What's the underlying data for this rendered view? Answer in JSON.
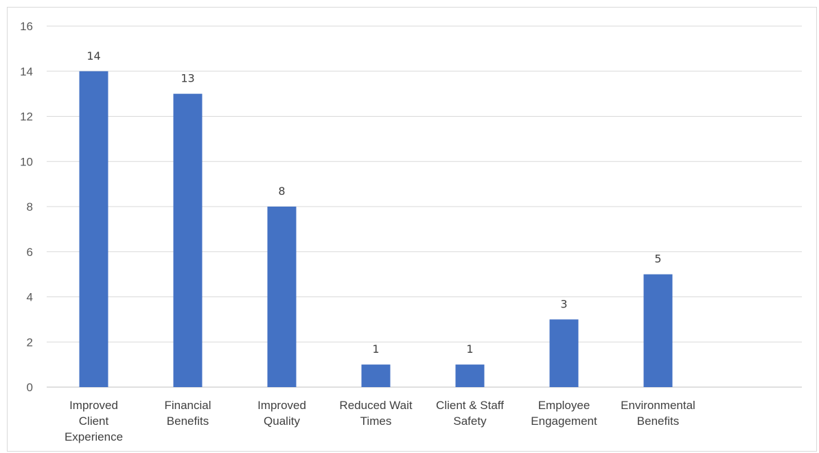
{
  "chart_data": {
    "type": "bar",
    "categories": [
      [
        "Improved",
        "Client",
        "Experience"
      ],
      [
        "Financial",
        "Benefits"
      ],
      [
        "Improved",
        "Quality"
      ],
      [
        "Reduced Wait",
        "Times"
      ],
      [
        "Client & Staff",
        "Safety"
      ],
      [
        "Employee",
        "Engagement"
      ],
      [
        "Environmental",
        "Benefits"
      ]
    ],
    "values": [
      14,
      13,
      8,
      1,
      1,
      3,
      5
    ],
    "ylim": [
      0,
      16
    ],
    "yticks": [
      0,
      2,
      4,
      6,
      8,
      10,
      12,
      14,
      16
    ],
    "grid": true,
    "data_labels": true,
    "legend": "none",
    "colors": {
      "bar": "#4472c4",
      "grid": "#d9d9d9",
      "axis": "#bfbfbf"
    }
  }
}
